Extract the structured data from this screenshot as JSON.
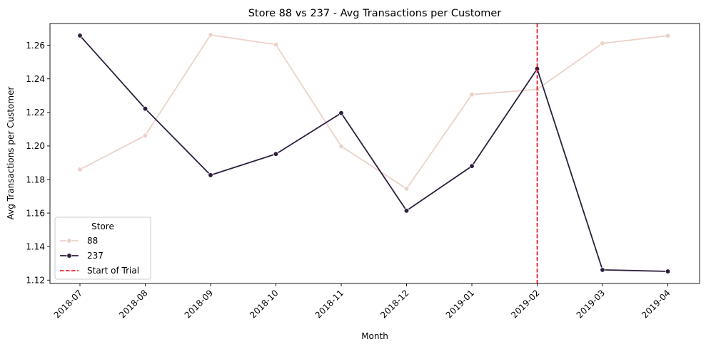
{
  "chart_data": {
    "type": "line",
    "title": "Store 88 vs 237 - Avg Transactions per Customer",
    "xlabel": "Month",
    "ylabel": "Avg Transactions per Customer",
    "categories": [
      "2018-07",
      "2018-08",
      "2018-09",
      "2018-10",
      "2018-11",
      "2018-12",
      "2019-01",
      "2019-02",
      "2019-03",
      "2019-04"
    ],
    "ylim": [
      1.118,
      1.273
    ],
    "yticks": [
      1.12,
      1.14,
      1.16,
      1.18,
      1.2,
      1.22,
      1.24,
      1.26
    ],
    "grid": false,
    "series": [
      {
        "name": "88",
        "color": "#ecd1c9",
        "values": [
          1.186,
          1.2062,
          1.2662,
          1.2604,
          1.1998,
          1.1745,
          1.2306,
          1.2337,
          1.2612,
          1.2657
        ]
      },
      {
        "name": "237",
        "color": "#2d1e3e",
        "values": [
          1.2658,
          1.2222,
          1.1826,
          1.1952,
          1.2196,
          1.1614,
          1.188,
          1.246,
          1.1261,
          1.1252
        ]
      }
    ],
    "vline": {
      "x": "2019-02",
      "name": "Start of Trial",
      "color": "#e8000b",
      "style": "dashed"
    },
    "legend": {
      "title": "Store",
      "position": "lower-left"
    }
  }
}
